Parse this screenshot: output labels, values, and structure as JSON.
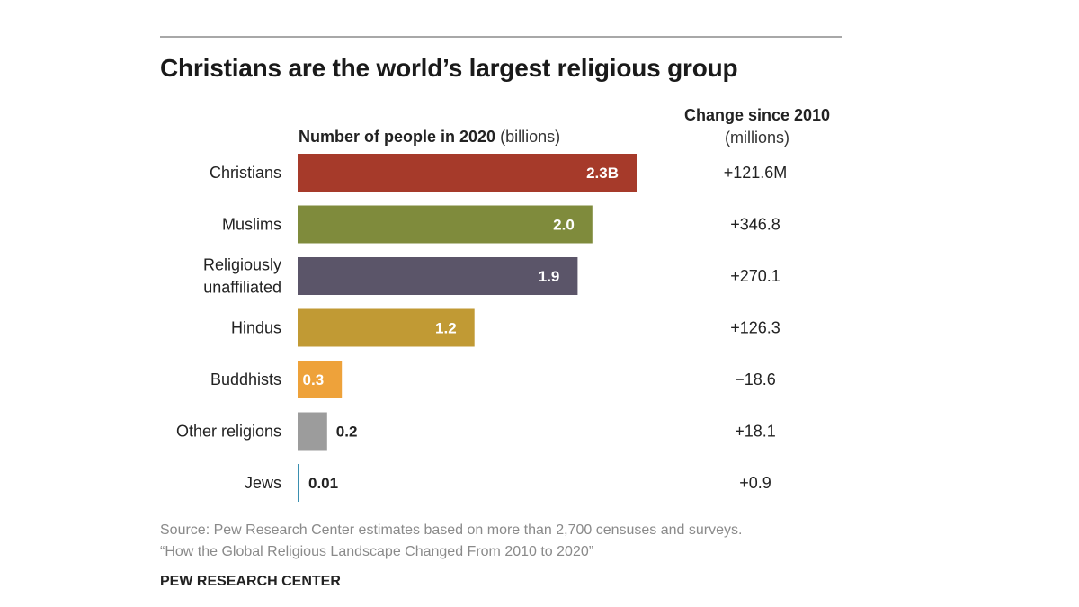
{
  "chart_data": {
    "type": "bar",
    "orientation": "horizontal",
    "title": "Christians are the world’s largest religious group",
    "bars_header": {
      "bold": "Number of people in 2020",
      "unit": "(billions)"
    },
    "change_header": {
      "bold": "Change since 2010",
      "unit": "(millions)"
    },
    "xlim": [
      0,
      2.3
    ],
    "categories": [
      {
        "lines": [
          "Christians"
        ],
        "value": 2.3,
        "value_label": "2.3B",
        "change": "+121.6M",
        "color": "#a63a2a",
        "label_color": "#ffffff",
        "label_inside": true
      },
      {
        "lines": [
          "Muslims"
        ],
        "value": 2.0,
        "value_label": "2.0",
        "change": "+346.8",
        "color": "#7f8b3c",
        "label_color": "#ffffff",
        "label_inside": true
      },
      {
        "lines": [
          "Religiously",
          "unaffiliated"
        ],
        "value": 1.9,
        "value_label": "1.9",
        "change": "+270.1",
        "color": "#5b5569",
        "label_color": "#ffffff",
        "label_inside": true
      },
      {
        "lines": [
          "Hindus"
        ],
        "value": 1.2,
        "value_label": "1.2",
        "change": "+126.3",
        "color": "#c19a34",
        "label_color": "#ffffff",
        "label_inside": true
      },
      {
        "lines": [
          "Buddhists"
        ],
        "value": 0.3,
        "value_label": "0.3",
        "change": "−18.6",
        "color": "#eea23a",
        "label_color": "#ffffff",
        "label_inside": true
      },
      {
        "lines": [
          "Other religions"
        ],
        "value": 0.2,
        "value_label": "0.2",
        "change": "+18.1",
        "color": "#9c9c9c",
        "label_color": "#222222",
        "label_inside": false
      },
      {
        "lines": [
          "Jews"
        ],
        "value": 0.01,
        "value_label": "0.01",
        "change": "+0.9",
        "color": "#3a8fb0",
        "label_color": "#222222",
        "label_inside": false
      }
    ]
  },
  "source": {
    "line1": "Source: Pew Research Center estimates based on more than 2,700 censuses and surveys.",
    "line2": "“How the Global Religious Landscape Changed From 2010 to 2020”"
  },
  "organization": "PEW RESEARCH CENTER"
}
